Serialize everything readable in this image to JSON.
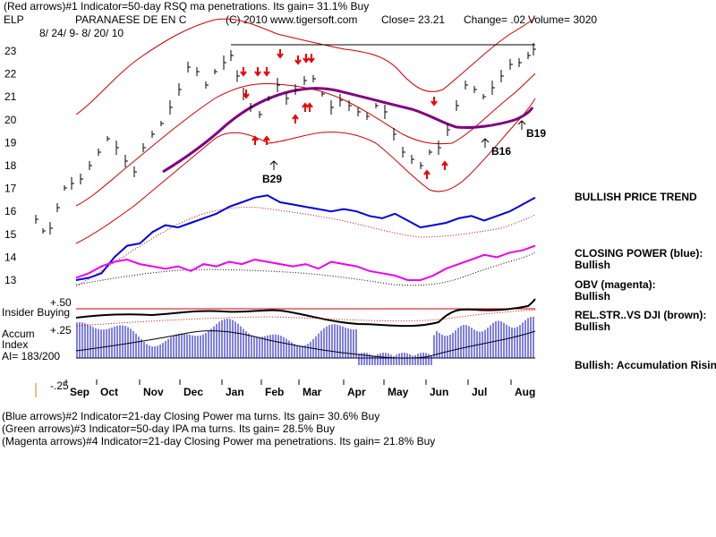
{
  "header": {
    "line1": "(Red arrows)#1 Indicator=50-day RSQ ma penetrations.  Its gain= 31.1% Buy",
    "ticker": "ELP",
    "company": "PARANAESE DE EN C",
    "copyright": "(C) 2010 www.tigersoft.com",
    "close": "Close=  23.21",
    "change": "Change= .02",
    "volume": "Volume= 3020",
    "dates": "8/ 24/ 9-  8/ 20/ 10"
  },
  "footer": {
    "line1": "(Blue arrows)#2 Indicator=21-day Closing Power ma turns.  Its gain= 30.6% Buy",
    "line2": "(Green arrows)#3 Indicator=50-day IPA ma turns.  Its gain= 28.5% Buy",
    "line3": "(Magenta arrows)#4 Indicator=21-day Closing Power ma penetrations.  Its gain= 21.8% Buy"
  },
  "right_panel": {
    "trend": "BULLISH PRICE TREND",
    "cp_label": "CLOSING POWER (blue):",
    "cp_value": "Bullish",
    "obv_label": "OBV (magenta):",
    "obv_value": "Bullish",
    "rs_label": "REL.STR..VS DJI (brown):",
    "rs_value": "Bullish",
    "accum": "Bullish: Accumulation Rising"
  },
  "lower_labels": {
    "plus50": "+.50",
    "insider": "Insider Buying",
    "plus25": "+.25",
    "accum": "Accum",
    "index": "Index",
    "ai": "AI= 183/200",
    "minus25": "-.25"
  },
  "signals": {
    "b29": "B29",
    "b16": "B16",
    "b19": "B19"
  },
  "colors": {
    "price": "#000000",
    "bands": "#cc0000",
    "ma": "#800080",
    "closing_power": "#0000dd",
    "obv": "#ee00ee",
    "accum": "#0000cc",
    "rs": "#8b4513"
  },
  "chart_data": {
    "type": "line",
    "title": "PARANAESE DE EN C",
    "y_ticks": [
      13,
      14,
      15,
      16,
      17,
      18,
      19,
      20,
      21,
      22,
      23
    ],
    "x_tick_labels": [
      "Sep",
      "Oct",
      "Nov",
      "Dec",
      "Jan",
      "Feb",
      "Mar",
      "Apr",
      "May",
      "Jun",
      "Jul",
      "Aug"
    ],
    "ylim": [
      12.6,
      23.5
    ],
    "series": [
      {
        "name": "CLOSING POWER (blue)",
        "values": [
          13.0,
          13.1,
          13.3,
          14.0,
          14.5,
          14.6,
          15.1,
          15.4,
          15.3,
          15.5,
          15.7,
          15.9,
          16.2,
          16.4,
          16.6,
          16.7,
          16.4,
          16.3,
          16.2,
          16.1,
          16.0,
          16.1,
          16.0,
          15.8,
          15.7,
          15.9,
          15.6,
          15.3,
          15.4,
          15.5,
          15.7,
          15.8,
          15.6,
          15.8,
          16.0,
          16.3,
          16.6
        ]
      },
      {
        "name": "OBV (magenta)",
        "values": [
          13.1,
          13.3,
          13.6,
          13.8,
          13.9,
          13.7,
          13.6,
          13.5,
          13.6,
          13.4,
          13.7,
          13.6,
          13.8,
          13.7,
          13.9,
          13.8,
          13.7,
          13.6,
          13.7,
          13.5,
          13.8,
          13.7,
          13.6,
          13.4,
          13.3,
          13.2,
          13.0,
          13.0,
          13.2,
          13.5,
          13.7,
          13.9,
          14.1,
          14.0,
          14.2,
          14.3,
          14.5
        ]
      }
    ]
  }
}
